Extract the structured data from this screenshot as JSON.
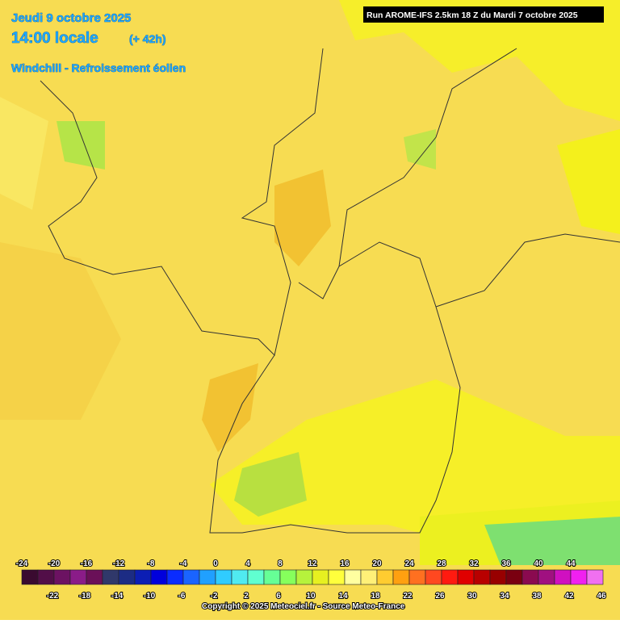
{
  "header": {
    "date": "Jeudi 9 octobre 2025",
    "time": "14:00 locale",
    "lead": "(+ 42h)",
    "parameter": "Windchill - Refroissement éolien",
    "run": "Run AROME-IFS 2.5km 18 Z du Mardi 7 octobre 2025"
  },
  "legend": {
    "labels": [
      -24,
      -22,
      -20,
      -18,
      -16,
      -14,
      -12,
      -10,
      -8,
      -6,
      -4,
      -2,
      0,
      2,
      4,
      6,
      8,
      10,
      12,
      14,
      16,
      18,
      20,
      22,
      24,
      26,
      28,
      30,
      32,
      34,
      36,
      38,
      40,
      42,
      44,
      46
    ],
    "colors": [
      "#3a0a30",
      "#520e48",
      "#6c1262",
      "#8a1c88",
      "#6a1058",
      "#30386a",
      "#1c2c84",
      "#0c1eb4",
      "#0000dc",
      "#0a2cff",
      "#1a64ff",
      "#20a0ff",
      "#30ccff",
      "#50eaf0",
      "#60ffd0",
      "#66ff96",
      "#86ff5c",
      "#b6f23c",
      "#e6f020",
      "#ffff3c",
      "#ffffa0",
      "#fff078",
      "#ffcc30",
      "#ffa010",
      "#ff7020",
      "#ff4820",
      "#ff1a10",
      "#e00000",
      "#b80000",
      "#980000",
      "#7a0010",
      "#8a0a50",
      "#a01080",
      "#d010c0",
      "#f020f0",
      "#f070f0"
    ]
  },
  "footer": {
    "copyright": "Copyright © 2025 Meteociel.fr - Source Meteo-France"
  }
}
